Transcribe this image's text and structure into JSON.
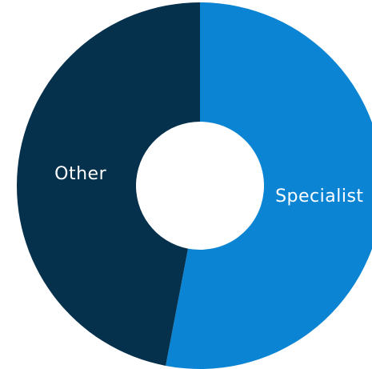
{
  "chart_data": {
    "type": "donut",
    "categories": [
      "Specialist",
      "Other"
    ],
    "values": [
      53,
      47
    ],
    "colors": [
      "#0b84d3",
      "#05314d"
    ]
  }
}
